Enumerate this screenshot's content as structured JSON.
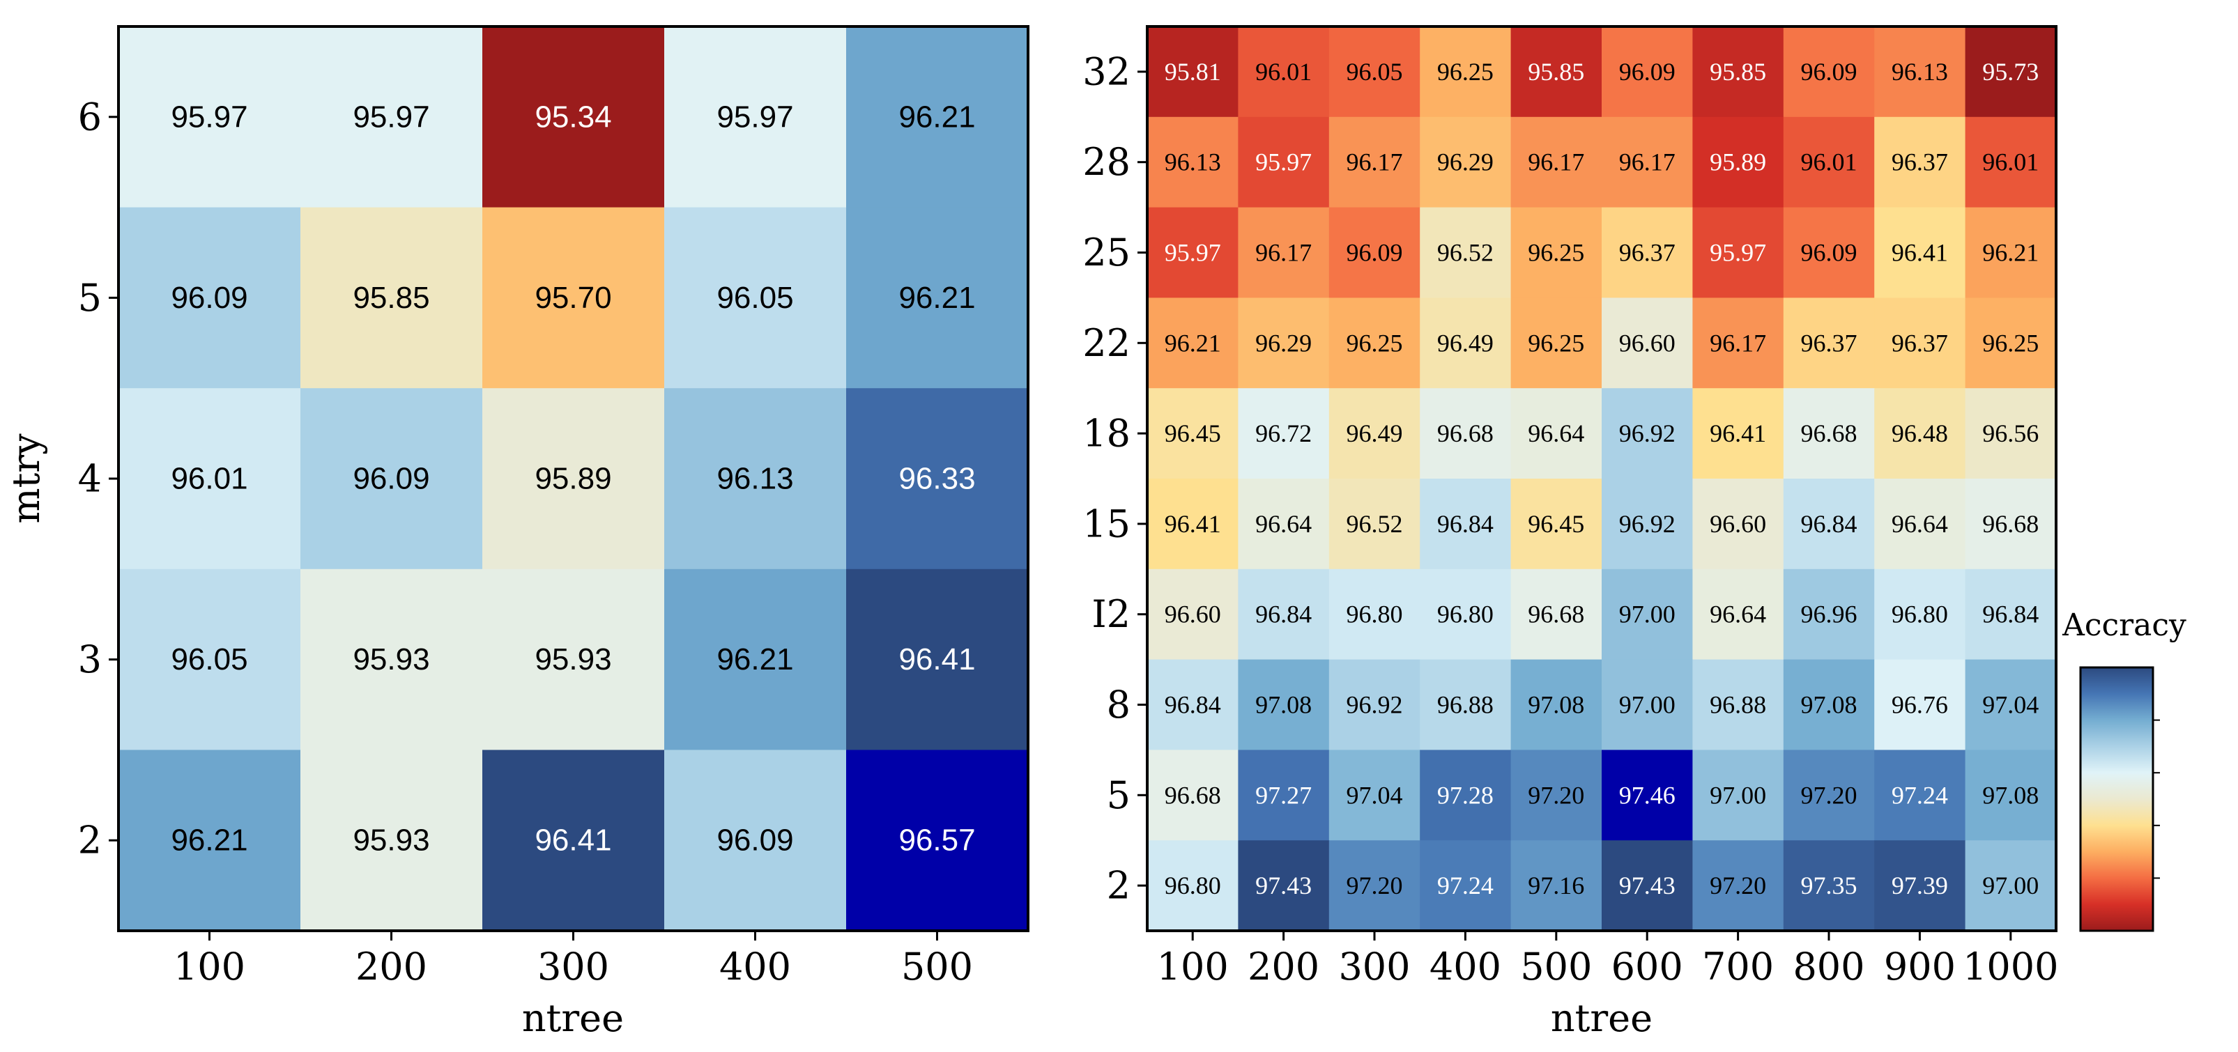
{
  "chart_data": [
    {
      "type": "heatmap",
      "title": "",
      "xlabel": "ntree",
      "ylabel": "mtry",
      "x_categories": [
        "100",
        "200",
        "300",
        "400",
        "500"
      ],
      "y_categories": [
        "6",
        "5",
        "4",
        "3",
        "2"
      ],
      "values": [
        [
          95.97,
          95.97,
          95.34,
          95.97,
          96.21
        ],
        [
          96.09,
          95.85,
          95.7,
          96.05,
          96.21
        ],
        [
          96.01,
          96.09,
          95.89,
          96.13,
          96.33
        ],
        [
          96.05,
          95.93,
          95.93,
          96.21,
          96.41
        ],
        [
          96.21,
          95.93,
          96.41,
          96.09,
          96.57
        ]
      ],
      "labels": [
        [
          "95.97",
          "95.97",
          "95.34",
          "95.97",
          "96.21"
        ],
        [
          "96.09",
          "95.85",
          "95.70",
          "96.05",
          "96.21"
        ],
        [
          "96.01",
          "96.09",
          "95.89",
          "96.13",
          "96.33"
        ],
        [
          "96.05",
          "95.93",
          "95.93",
          "96.21",
          "96.41"
        ],
        [
          "96.21",
          "95.93",
          "96.41",
          "96.09",
          "96.57"
        ]
      ],
      "special_colors": {
        "96.57": "#0000a8"
      }
    },
    {
      "type": "heatmap",
      "title": "",
      "xlabel": "ntree",
      "ylabel": "",
      "x_categories": [
        "100",
        "200",
        "300",
        "400",
        "500",
        "600",
        "700",
        "800",
        "900",
        "1000"
      ],
      "y_categories": [
        "32",
        "28",
        "25",
        "22",
        "18",
        "15",
        "I2",
        "8",
        "5",
        "2"
      ],
      "values": [
        [
          95.81,
          96.01,
          96.05,
          96.25,
          95.85,
          96.09,
          95.85,
          96.09,
          96.13,
          95.73
        ],
        [
          96.13,
          95.97,
          96.17,
          96.29,
          96.17,
          96.17,
          95.89,
          96.01,
          96.37,
          96.01
        ],
        [
          95.97,
          96.17,
          96.09,
          96.52,
          96.25,
          96.37,
          95.97,
          96.09,
          96.41,
          96.21
        ],
        [
          96.21,
          96.29,
          96.25,
          96.49,
          96.25,
          96.6,
          96.17,
          96.37,
          96.37,
          96.25
        ],
        [
          96.45,
          96.72,
          96.49,
          96.68,
          96.64,
          96.92,
          96.41,
          96.68,
          96.48,
          96.56
        ],
        [
          96.41,
          96.64,
          96.52,
          96.84,
          96.45,
          96.92,
          96.6,
          96.84,
          96.64,
          96.68
        ],
        [
          96.6,
          96.84,
          96.8,
          96.8,
          96.68,
          97.0,
          96.64,
          96.96,
          96.8,
          96.84
        ],
        [
          96.84,
          97.08,
          96.92,
          96.88,
          97.08,
          97.0,
          96.88,
          97.08,
          96.76,
          97.04
        ],
        [
          96.68,
          97.27,
          97.04,
          97.28,
          97.2,
          97.46,
          97.0,
          97.2,
          97.24,
          97.08
        ],
        [
          96.8,
          97.43,
          97.2,
          97.24,
          97.16,
          97.43,
          97.2,
          97.35,
          97.39,
          97.0
        ]
      ],
      "labels": [
        [
          "95.81",
          "96.01",
          "96.05",
          "96.25",
          "95.85",
          "96.09",
          "95.85",
          "96.09",
          "96.13",
          "95.73"
        ],
        [
          "96.13",
          "95.97",
          "96.17",
          "96.29",
          "96.17",
          "96.17",
          "95.89",
          "96.01",
          "96.37",
          "96.01"
        ],
        [
          "95.97",
          "96.17",
          "96.09",
          "96.52",
          "96.25",
          "96.37",
          "95.97",
          "96.09",
          "96.41",
          "96.21"
        ],
        [
          "96.21",
          "96.29",
          "96.25",
          "96.49",
          "96.25",
          "96.60",
          "96.17",
          "96.37",
          "96.37",
          "96.25"
        ],
        [
          "96.45",
          "96.72",
          "96.49",
          "96.68",
          "96.64",
          "96.92",
          "96.41",
          "96.68",
          "96.48",
          "96.56"
        ],
        [
          "96.41",
          "96.64",
          "96.52",
          "96.84",
          "96.45",
          "96.92",
          "96.60",
          "96.84",
          "96.64",
          "96.68"
        ],
        [
          "96.60",
          "96.84",
          "96.80",
          "96.80",
          "96.68",
          "97.00",
          "96.64",
          "96.96",
          "96.80",
          "96.84"
        ],
        [
          "96.84",
          "97.08",
          "96.92",
          "96.88",
          "97.08",
          "97.00",
          "96.88",
          "97.08",
          "96.76",
          "97.04"
        ],
        [
          "96.68",
          "97.27",
          "97.04",
          "97.28",
          "97.20",
          "97.46",
          "97.00",
          "97.20",
          "97.24",
          "97.08"
        ],
        [
          "96.80",
          "97.43",
          "97.20",
          "97.24",
          "97.16",
          "97.43",
          "97.20",
          "97.35",
          "97.39",
          "97.00"
        ]
      ],
      "special_colors": {
        "97.46": "#0000a8"
      }
    }
  ],
  "colorbar": {
    "label": "Accracy",
    "colormap": "RdYlBu",
    "colors": [
      "#9b1c1c",
      "#d73027",
      "#f46d43",
      "#fdae61",
      "#fee090",
      "#ebe9d0",
      "#e0f3f8",
      "#abd1e6",
      "#74add1",
      "#4575b4",
      "#2c4a80"
    ]
  }
}
